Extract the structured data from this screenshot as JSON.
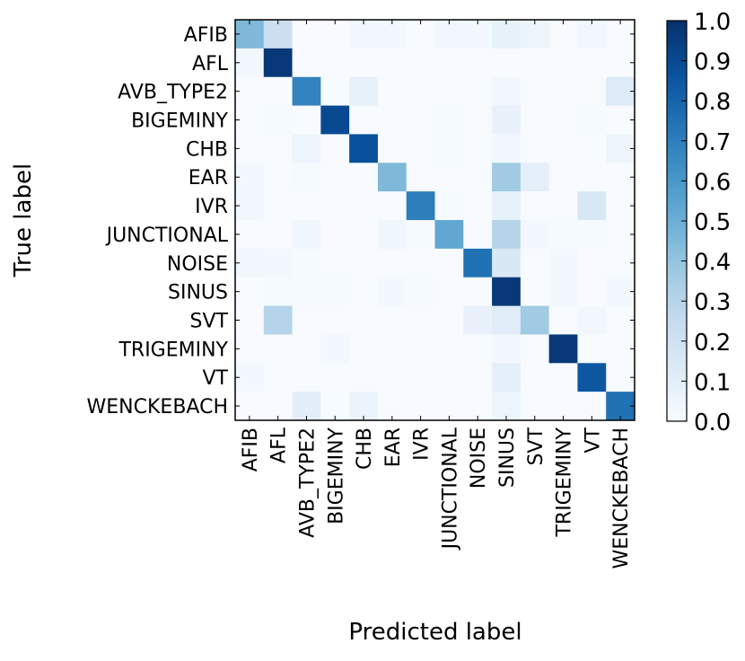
{
  "chart_data": {
    "type": "heatmap",
    "title": "",
    "xlabel": "Predicted label",
    "ylabel": "True label",
    "categories": [
      "AFIB",
      "AFL",
      "AVB_TYPE2",
      "BIGEMINY",
      "CHB",
      "EAR",
      "IVR",
      "JUNCTIONAL",
      "NOISE",
      "SINUS",
      "SVT",
      "TRIGEMINY",
      "VT",
      "WENCKEBACH"
    ],
    "colormap": "Blues",
    "colorbar": {
      "range": [
        0.0,
        1.0
      ],
      "ticks": [
        "0.0",
        "0.1",
        "0.2",
        "0.3",
        "0.4",
        "0.5",
        "0.6",
        "0.7",
        "0.8",
        "0.9",
        "1.0"
      ]
    },
    "matrix": [
      [
        0.45,
        0.22,
        0,
        0,
        0.03,
        0.02,
        0,
        0.03,
        0.02,
        0.08,
        0.05,
        0,
        0.03,
        0
      ],
      [
        0.03,
        0.97,
        0,
        0,
        0,
        0,
        0,
        0,
        0,
        0,
        0,
        0,
        0,
        0
      ],
      [
        0,
        0,
        0.68,
        0,
        0.08,
        0,
        0,
        0,
        0,
        0.03,
        0,
        0,
        0,
        0.13
      ],
      [
        0,
        0.01,
        0,
        0.9,
        0,
        0,
        0,
        0.01,
        0,
        0.07,
        0,
        0,
        0.01,
        0
      ],
      [
        0,
        0,
        0.05,
        0,
        0.88,
        0,
        0,
        0.01,
        0,
        0.03,
        0,
        0,
        0,
        0.05
      ],
      [
        0.02,
        0,
        0.01,
        0,
        0,
        0.45,
        0,
        0,
        0,
        0.37,
        0.09,
        0,
        0,
        0
      ],
      [
        0.03,
        0,
        0,
        0,
        0,
        0,
        0.7,
        0.01,
        0,
        0.08,
        0,
        0,
        0.16,
        0
      ],
      [
        0,
        0,
        0.04,
        0,
        0,
        0.04,
        0.01,
        0.53,
        0,
        0.3,
        0.02,
        0.01,
        0.01,
        0
      ],
      [
        0.03,
        0.02,
        0.01,
        0,
        0,
        0,
        0,
        0,
        0.75,
        0.15,
        0,
        0.02,
        0,
        0
      ],
      [
        0,
        0.01,
        0.01,
        0.01,
        0,
        0.02,
        0.01,
        0,
        0,
        0.97,
        0,
        0.02,
        0,
        0.02
      ],
      [
        0,
        0.3,
        0,
        0,
        0,
        0,
        0,
        0,
        0.07,
        0.11,
        0.37,
        0,
        0.03,
        0
      ],
      [
        0,
        0,
        0,
        0.02,
        0,
        0,
        0,
        0,
        0,
        0.02,
        0,
        0.97,
        0,
        0
      ],
      [
        0.02,
        0,
        0,
        0,
        0,
        0,
        0,
        0,
        0,
        0.09,
        0,
        0,
        0.85,
        0
      ],
      [
        0,
        0,
        0.1,
        0,
        0.06,
        0,
        0,
        0,
        0,
        0.05,
        0,
        0,
        0,
        0.75
      ]
    ]
  }
}
